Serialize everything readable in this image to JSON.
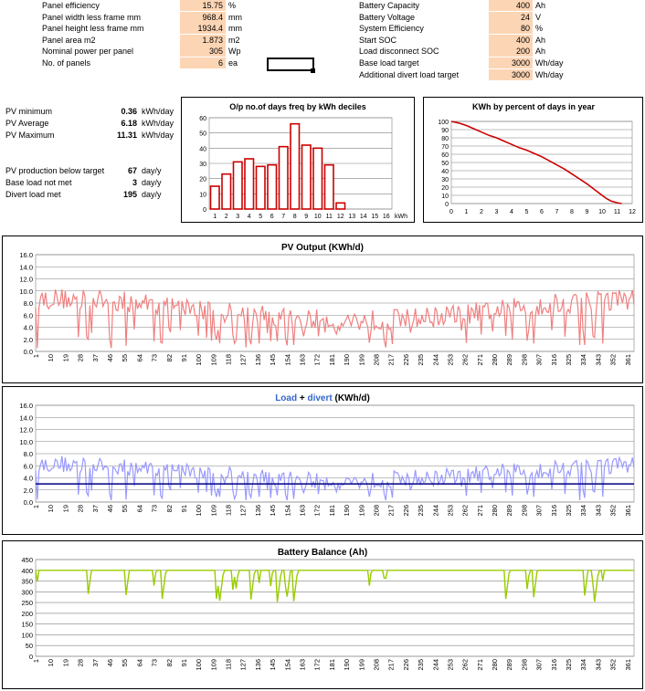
{
  "panel_inputs": [
    {
      "label": "Panel efficiency",
      "value": "15.75",
      "unit": "%"
    },
    {
      "label": "Panel width less frame mm",
      "value": "968.4",
      "unit": "mm"
    },
    {
      "label": "Panel height less frame mm",
      "value": "1934.4",
      "unit": "mm"
    },
    {
      "label": "Panel area m2",
      "value": "1.873",
      "unit": "m2"
    },
    {
      "label": "Nominal power per panel",
      "value": "305",
      "unit": "Wp"
    },
    {
      "label": "No. of panels",
      "value": "6",
      "unit": "ea"
    }
  ],
  "battery_inputs": [
    {
      "label": "Battery Capacity",
      "value": "400",
      "unit": "Ah"
    },
    {
      "label": "Battery Voltage",
      "value": "24",
      "unit": "V"
    },
    {
      "label": "System Efficiency",
      "value": "80",
      "unit": "%"
    },
    {
      "label": "Start SOC",
      "value": "400",
      "unit": "Ah"
    },
    {
      "label": "Load disconnect SOC",
      "value": "200",
      "unit": "Ah"
    },
    {
      "label": "Base load target",
      "value": "3000",
      "unit": "Wh/day"
    },
    {
      "label": "Additional divert load target",
      "value": "3000",
      "unit": "Wh/day"
    }
  ],
  "pv_stats": [
    {
      "label": "PV minimum",
      "value": "0.36",
      "unit": "kWh/day"
    },
    {
      "label": "PV Average",
      "value": "6.18",
      "unit": "kWh/day"
    },
    {
      "label": "PV Maximum",
      "value": "11.31",
      "unit": "kWh/day"
    }
  ],
  "target_stats": [
    {
      "label": "PV production below target",
      "value": "67",
      "unit": "day/y"
    },
    {
      "label": "Base load not met",
      "value": "3",
      "unit": "day/y"
    },
    {
      "label": "Divert load met",
      "value": "195",
      "unit": "day/y"
    }
  ],
  "colors": {
    "input_fill": "#fcd5b4",
    "pv_line": "#f08080",
    "divert_line": "#9999ff",
    "load_line": "#000080",
    "battery_line": "#99cc00",
    "histogram_bar": "#cc0000",
    "duration_line": "#cc0000",
    "grid": "#808080",
    "plot_bg": "#ffffff"
  },
  "chart_data": [
    {
      "id": "histogram",
      "type": "bar",
      "title": "O/p no.of days freq by kWh deciles",
      "xlabel": "kWh",
      "categories": [
        "1",
        "2",
        "3",
        "4",
        "5",
        "6",
        "7",
        "8",
        "9",
        "10",
        "11",
        "12",
        "13",
        "14",
        "15",
        "16"
      ],
      "values": [
        15,
        23,
        31,
        33,
        28,
        29,
        41,
        56,
        42,
        40,
        29,
        4,
        0,
        0,
        0,
        0
      ],
      "ylim": [
        0,
        60
      ],
      "yticks": [
        "0",
        "10",
        "20",
        "30",
        "40",
        "50",
        "60"
      ],
      "grid": true
    },
    {
      "id": "duration",
      "type": "line",
      "title": "KWh by percent of days in year",
      "ylim": [
        0,
        100
      ],
      "xlim": [
        0,
        12
      ],
      "yticks": [
        "0",
        "10",
        "20",
        "30",
        "40",
        "50",
        "60",
        "70",
        "80",
        "90",
        "100"
      ],
      "xticks": [
        "0",
        "1",
        "2",
        "3",
        "4",
        "5",
        "6",
        "7",
        "8",
        "9",
        "10",
        "11",
        "12"
      ],
      "x": [
        0,
        0.5,
        1,
        1.5,
        2,
        2.5,
        3,
        3.5,
        4,
        4.5,
        5,
        5.5,
        6,
        6.5,
        7,
        7.5,
        8,
        8.5,
        9,
        9.5,
        10,
        10.3,
        10.6,
        11,
        11.3
      ],
      "y": [
        100,
        98,
        95,
        91,
        87,
        83,
        80,
        76,
        72,
        68,
        65,
        61,
        57,
        52,
        47,
        42,
        36,
        30,
        24,
        17,
        10,
        6,
        3,
        1,
        0
      ],
      "grid": true
    },
    {
      "id": "pv_output",
      "type": "line",
      "title": "PV Output (KWh/d)",
      "ylim": [
        0,
        16
      ],
      "yticks": [
        "0.0",
        "2.0",
        "4.0",
        "6.0",
        "8.0",
        "10.0",
        "12.0",
        "14.0",
        "16.0"
      ],
      "xticks": [
        "1",
        "10",
        "19",
        "28",
        "37",
        "46",
        "55",
        "64",
        "73",
        "82",
        "91",
        "100",
        "109",
        "118",
        "127",
        "136",
        "145",
        "154",
        "163",
        "172",
        "181",
        "190",
        "199",
        "208",
        "217",
        "226",
        "235",
        "244",
        "253",
        "262",
        "271",
        "280",
        "289",
        "298",
        "307",
        "316",
        "325",
        "334",
        "343",
        "352",
        "361"
      ],
      "series": [
        {
          "values_seed": 1
        }
      ],
      "grid": true
    },
    {
      "id": "load_divert",
      "type": "line",
      "title_parts": [
        "Load",
        " + ",
        "divert",
        " (KWh/d)"
      ],
      "ylim": [
        0,
        16
      ],
      "yticks": [
        "0.0",
        "2.0",
        "4.0",
        "6.0",
        "8.0",
        "10.0",
        "12.0",
        "14.0",
        "16.0"
      ],
      "xticks": [
        "1",
        "10",
        "19",
        "28",
        "37",
        "46",
        "55",
        "64",
        "73",
        "82",
        "91",
        "100",
        "109",
        "118",
        "127",
        "136",
        "145",
        "154",
        "163",
        "172",
        "181",
        "190",
        "199",
        "208",
        "217",
        "226",
        "235",
        "244",
        "253",
        "262",
        "271",
        "280",
        "289",
        "298",
        "307",
        "316",
        "325",
        "334",
        "343",
        "352",
        "361"
      ],
      "base_load": 3.0,
      "grid": true
    },
    {
      "id": "battery",
      "type": "line",
      "title": "Battery Balance (Ah)",
      "ylim": [
        0,
        450
      ],
      "yticks": [
        "0",
        "50",
        "100",
        "150",
        "200",
        "250",
        "300",
        "350",
        "400",
        "450"
      ],
      "xticks": [
        "1",
        "10",
        "19",
        "28",
        "37",
        "46",
        "55",
        "64",
        "73",
        "82",
        "91",
        "100",
        "109",
        "118",
        "127",
        "136",
        "145",
        "154",
        "163",
        "172",
        "181",
        "190",
        "199",
        "208",
        "217",
        "226",
        "235",
        "244",
        "253",
        "262",
        "271",
        "280",
        "289",
        "298",
        "307",
        "316",
        "325",
        "334",
        "343",
        "352",
        "361"
      ],
      "grid": true
    }
  ]
}
